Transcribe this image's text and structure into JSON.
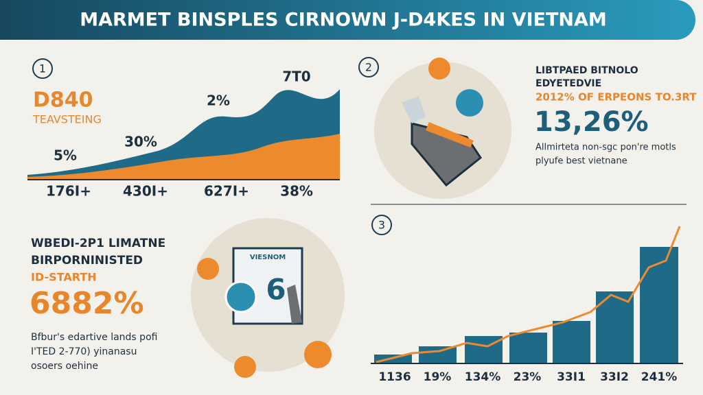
{
  "header": {
    "title": "MARMET BINSPLES CIRNOWN J-D4KES IN VIETNAM"
  },
  "panel1": {
    "number": "1",
    "headline": "D840",
    "subhead": "TEAVSTEING",
    "point_labels": [
      "5%",
      "30%",
      "2%",
      "7T0"
    ],
    "axis_labels": [
      "176I+",
      "430I+",
      "627I+",
      "38%"
    ]
  },
  "panel2": {
    "number": "2",
    "lines": [
      "LIBTPAED BITNOLO",
      "EDYETEDVIE"
    ],
    "highlight": "2012% OF ERPEONS TO.3RT",
    "big_value": "13,26%",
    "caption": [
      "Allmirteta non-sgc pon're motls",
      "plyufe best vietnane"
    ]
  },
  "panel3": {
    "number": "3",
    "axis_labels": [
      "1136",
      "19%",
      "134%",
      "23%",
      "33I1",
      "33I2",
      "241%"
    ]
  },
  "panel4": {
    "lines": [
      "WBEDI-2P1 LIMATNE",
      "BIRPORNINISTED"
    ],
    "highlight": "ID-STARTH",
    "big_value": "6882%",
    "caption": [
      "Bfbur's edartive lands pofi",
      "I'TED 2-770) yinanasu",
      "osoers oehine"
    ],
    "sign": "VIESNOM",
    "digit": "6"
  }
}
